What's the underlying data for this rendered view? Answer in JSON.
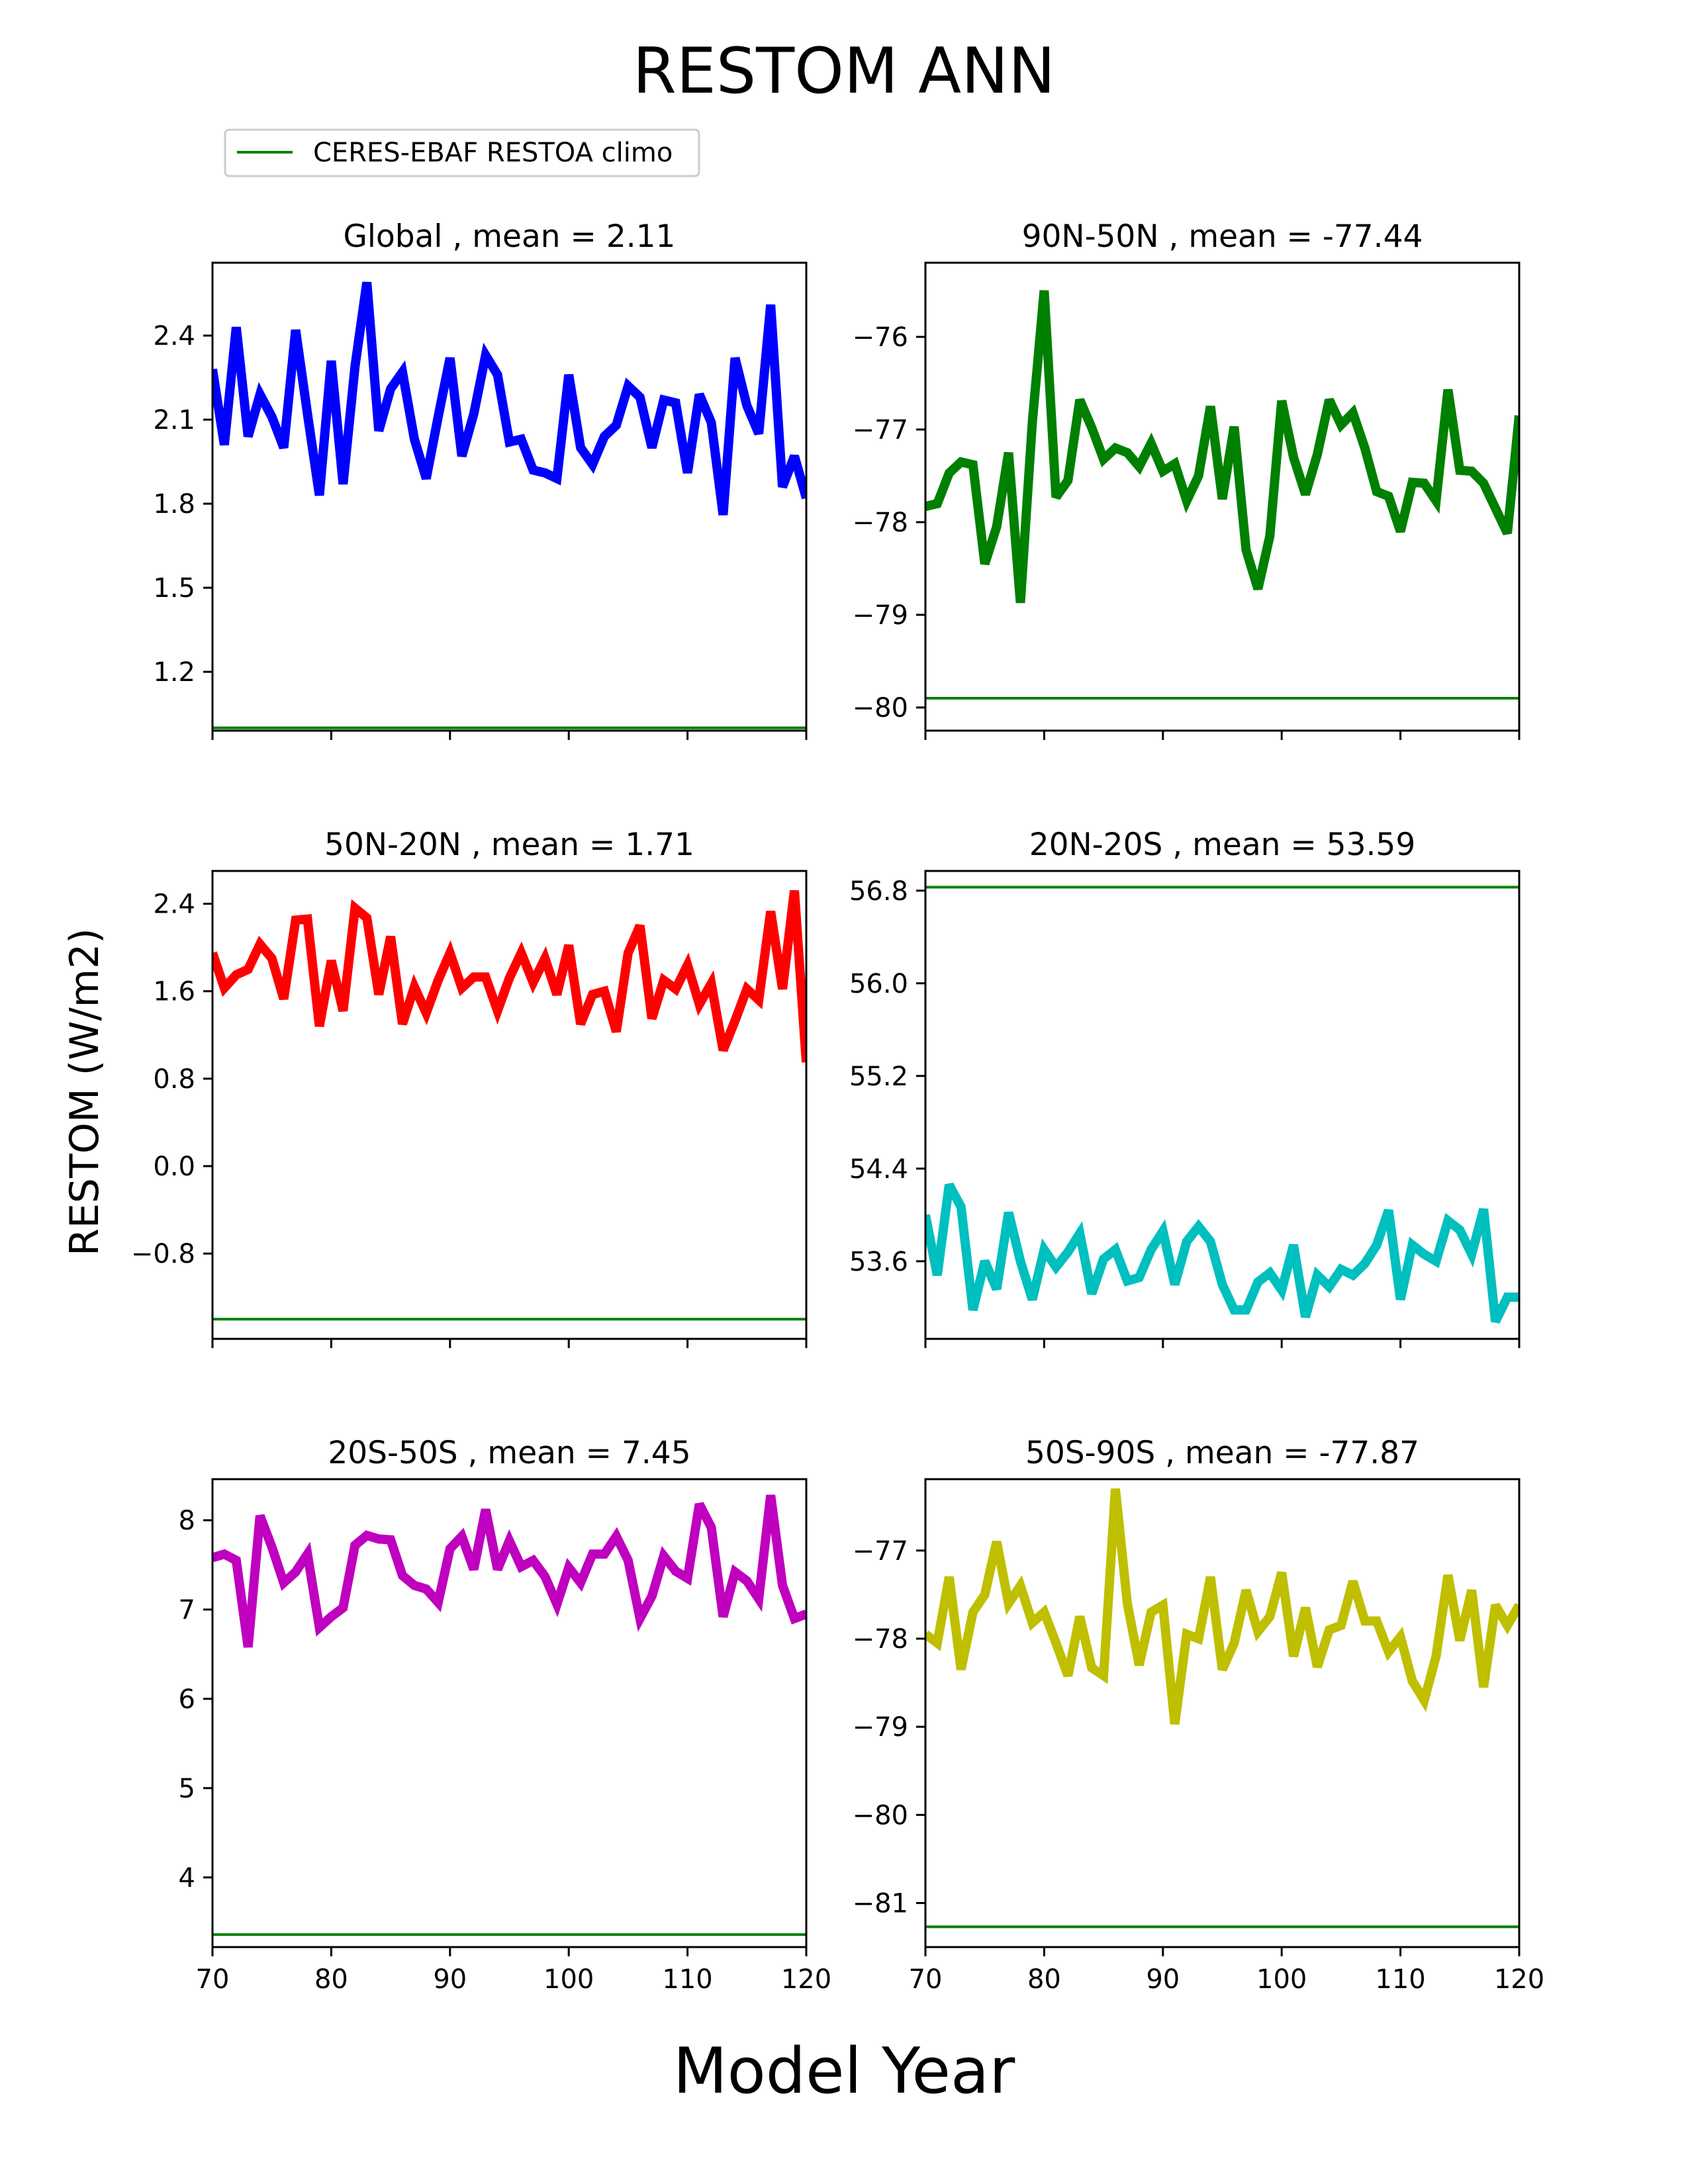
{
  "figure": {
    "title": "RESTOM ANN",
    "xlabel": "Model Year",
    "ylabel": "RESTOM (W/m2)",
    "legend_label": "CERES-EBAF RESTOA climo",
    "legend_color": "#008000"
  },
  "chart_data": [
    {
      "type": "line",
      "title": "Global , mean = 2.11",
      "color": "#0000ff",
      "xlim": [
        70,
        120
      ],
      "xticks": [
        70,
        80,
        90,
        100,
        110,
        120
      ],
      "ylim": [
        0.99,
        2.66
      ],
      "yticks": [
        1.2,
        1.5,
        1.8,
        2.1,
        2.4
      ],
      "ytick_labels": [
        "1.2",
        "1.5",
        "1.8",
        "2.1",
        "2.4"
      ],
      "show_xtick_labels": false,
      "reference_value": 1.0,
      "x": [
        70,
        71,
        72,
        73,
        74,
        75,
        76,
        77,
        78,
        79,
        80,
        81,
        82,
        83,
        84,
        85,
        86,
        87,
        88,
        89,
        90,
        91,
        92,
        93,
        94,
        95,
        96,
        97,
        98,
        99,
        100,
        101,
        102,
        103,
        104,
        105,
        106,
        107,
        108,
        109,
        110,
        111,
        112,
        113,
        114,
        115,
        116,
        117,
        118,
        119,
        120
      ],
      "y": [
        2.28,
        2.01,
        2.43,
        2.04,
        2.19,
        2.11,
        2.0,
        2.42,
        2.12,
        1.83,
        2.31,
        1.87,
        2.29,
        2.59,
        2.06,
        2.21,
        2.27,
        2.03,
        1.89,
        2.11,
        2.32,
        1.97,
        2.12,
        2.33,
        2.26,
        2.02,
        2.03,
        1.92,
        1.91,
        1.89,
        2.26,
        2.0,
        1.94,
        2.04,
        2.08,
        2.22,
        2.18,
        2.0,
        2.17,
        2.16,
        1.91,
        2.19,
        2.09,
        1.76,
        2.32,
        2.15,
        2.05,
        2.51,
        1.86,
        1.97,
        1.82
      ]
    },
    {
      "type": "line",
      "title": "90N-50N , mean = -77.44",
      "color": "#008000",
      "xlim": [
        70,
        120
      ],
      "xticks": [
        70,
        80,
        90,
        100,
        110,
        120
      ],
      "ylim": [
        -80.25,
        -75.2
      ],
      "yticks": [
        -80,
        -79,
        -78,
        -77,
        -76
      ],
      "ytick_labels": [
        "−80",
        "−79",
        "−78",
        "−77",
        "−76"
      ],
      "show_xtick_labels": false,
      "reference_value": -79.9,
      "x": [
        70,
        71,
        72,
        73,
        74,
        75,
        76,
        77,
        78,
        79,
        80,
        81,
        82,
        83,
        84,
        85,
        86,
        87,
        88,
        89,
        90,
        91,
        92,
        93,
        94,
        95,
        96,
        97,
        98,
        99,
        100,
        101,
        102,
        103,
        104,
        105,
        106,
        107,
        108,
        109,
        110,
        111,
        112,
        113,
        114,
        115,
        116,
        117,
        118,
        119,
        120
      ],
      "y": [
        -77.83,
        -77.8,
        -77.47,
        -77.35,
        -77.38,
        -78.45,
        -78.05,
        -77.25,
        -78.87,
        -76.92,
        -75.5,
        -77.73,
        -77.55,
        -76.68,
        -76.98,
        -77.32,
        -77.2,
        -77.25,
        -77.4,
        -77.15,
        -77.45,
        -77.37,
        -77.77,
        -77.5,
        -76.75,
        -77.75,
        -76.97,
        -78.3,
        -78.72,
        -78.15,
        -76.69,
        -77.3,
        -77.7,
        -77.27,
        -76.68,
        -76.95,
        -76.82,
        -77.2,
        -77.67,
        -77.72,
        -78.1,
        -77.57,
        -77.58,
        -77.77,
        -76.57,
        -77.44,
        -77.45,
        -77.58,
        -77.85,
        -78.12,
        -76.85
      ]
    },
    {
      "type": "line",
      "title": "50N-20N , mean = 1.71",
      "color": "#ff0000",
      "xlim": [
        70,
        120
      ],
      "xticks": [
        70,
        80,
        90,
        100,
        110,
        120
      ],
      "ylim": [
        -1.58,
        2.7
      ],
      "yticks": [
        -0.8,
        0.0,
        0.8,
        1.6,
        2.4
      ],
      "ytick_labels": [
        "−0.8",
        "0.0",
        "0.8",
        "1.6",
        "2.4"
      ],
      "show_xtick_labels": false,
      "reference_value": -1.4,
      "x": [
        70,
        71,
        72,
        73,
        74,
        75,
        76,
        77,
        78,
        79,
        80,
        81,
        82,
        83,
        84,
        85,
        86,
        87,
        88,
        89,
        90,
        91,
        92,
        93,
        94,
        95,
        96,
        97,
        98,
        99,
        100,
        101,
        102,
        103,
        104,
        105,
        106,
        107,
        108,
        109,
        110,
        111,
        112,
        113,
        114,
        115,
        116,
        117,
        118,
        119,
        120
      ],
      "y": [
        1.95,
        1.63,
        1.75,
        1.8,
        2.03,
        1.9,
        1.53,
        2.25,
        2.26,
        1.28,
        1.88,
        1.42,
        2.36,
        2.27,
        1.57,
        2.1,
        1.3,
        1.64,
        1.4,
        1.7,
        1.95,
        1.63,
        1.73,
        1.73,
        1.42,
        1.72,
        1.95,
        1.68,
        1.9,
        1.57,
        2.02,
        1.3,
        1.57,
        1.6,
        1.23,
        1.95,
        2.2,
        1.35,
        1.7,
        1.62,
        1.84,
        1.48,
        1.67,
        1.06,
        1.33,
        1.62,
        1.52,
        2.33,
        1.62,
        2.52,
        0.95
      ]
    },
    {
      "type": "line",
      "title": "20N-20S , mean = 53.59",
      "color": "#00bfbf",
      "xlim": [
        70,
        120
      ],
      "xticks": [
        70,
        80,
        90,
        100,
        110,
        120
      ],
      "ylim": [
        52.93,
        56.97
      ],
      "yticks": [
        53.6,
        54.4,
        55.2,
        56.0,
        56.8
      ],
      "ytick_labels": [
        "53.6",
        "54.4",
        "55.2",
        "56.0",
        "56.8"
      ],
      "show_xtick_labels": false,
      "reference_value": 56.83,
      "x": [
        70,
        71,
        72,
        73,
        74,
        75,
        76,
        77,
        78,
        79,
        80,
        81,
        82,
        83,
        84,
        85,
        86,
        87,
        88,
        89,
        90,
        91,
        92,
        93,
        94,
        95,
        96,
        97,
        98,
        99,
        100,
        101,
        102,
        103,
        104,
        105,
        106,
        107,
        108,
        109,
        110,
        111,
        112,
        113,
        114,
        115,
        116,
        117,
        118,
        119,
        120
      ],
      "y": [
        54.0,
        53.48,
        54.26,
        54.07,
        53.18,
        53.6,
        53.36,
        54.02,
        53.6,
        53.27,
        53.7,
        53.55,
        53.68,
        53.84,
        53.32,
        53.62,
        53.7,
        53.43,
        53.46,
        53.7,
        53.86,
        53.4,
        53.77,
        53.9,
        53.77,
        53.4,
        53.18,
        53.18,
        53.42,
        53.5,
        53.35,
        53.74,
        53.12,
        53.48,
        53.38,
        53.53,
        53.48,
        53.58,
        53.74,
        54.04,
        53.27,
        53.74,
        53.66,
        53.6,
        53.95,
        53.87,
        53.66,
        54.05,
        53.08,
        53.29,
        53.29
      ]
    },
    {
      "type": "line",
      "title": "20S-50S , mean = 7.45",
      "color": "#bf00bf",
      "xlim": [
        70,
        120
      ],
      "xticks": [
        70,
        80,
        90,
        100,
        110,
        120
      ],
      "ylim": [
        3.22,
        8.46
      ],
      "yticks": [
        4,
        5,
        6,
        7,
        8
      ],
      "ytick_labels": [
        "4",
        "5",
        "6",
        "7",
        "8"
      ],
      "show_xtick_labels": true,
      "reference_value": 3.36,
      "x": [
        70,
        71,
        72,
        73,
        74,
        75,
        76,
        77,
        78,
        79,
        80,
        81,
        82,
        83,
        84,
        85,
        86,
        87,
        88,
        89,
        90,
        91,
        92,
        93,
        94,
        95,
        96,
        97,
        98,
        99,
        100,
        101,
        102,
        103,
        104,
        105,
        106,
        107,
        108,
        109,
        110,
        111,
        112,
        113,
        114,
        115,
        116,
        117,
        118,
        119,
        120
      ],
      "y": [
        7.58,
        7.62,
        7.55,
        6.58,
        8.05,
        7.7,
        7.3,
        7.42,
        7.62,
        6.8,
        6.92,
        7.02,
        7.72,
        7.83,
        7.79,
        7.78,
        7.38,
        7.27,
        7.23,
        7.08,
        7.68,
        7.82,
        7.45,
        8.12,
        7.45,
        7.77,
        7.48,
        7.55,
        7.37,
        7.06,
        7.47,
        7.3,
        7.62,
        7.62,
        7.82,
        7.55,
        6.9,
        7.15,
        7.6,
        7.43,
        7.35,
        8.18,
        7.92,
        6.92,
        7.42,
        7.32,
        7.12,
        8.28,
        7.27,
        6.9,
        6.95
      ]
    },
    {
      "type": "line",
      "title": "50S-90S , mean = -77.87",
      "color": "#bfbf00",
      "xlim": [
        70,
        120
      ],
      "xticks": [
        70,
        80,
        90,
        100,
        110,
        120
      ],
      "ylim": [
        -81.5,
        -76.19
      ],
      "yticks": [
        -81,
        -80,
        -79,
        -78,
        -77
      ],
      "ytick_labels": [
        "−81",
        "−80",
        "−79",
        "−78",
        "−77"
      ],
      "show_xtick_labels": true,
      "reference_value": -81.27,
      "x": [
        70,
        71,
        72,
        73,
        74,
        75,
        76,
        77,
        78,
        79,
        80,
        81,
        82,
        83,
        84,
        85,
        86,
        87,
        88,
        89,
        90,
        91,
        92,
        93,
        94,
        95,
        96,
        97,
        98,
        99,
        100,
        101,
        102,
        103,
        104,
        105,
        106,
        107,
        108,
        109,
        110,
        111,
        112,
        113,
        114,
        115,
        116,
        117,
        118,
        119,
        120
      ],
      "y": [
        -77.95,
        -78.05,
        -77.3,
        -78.35,
        -77.7,
        -77.5,
        -76.9,
        -77.6,
        -77.4,
        -77.82,
        -77.7,
        -78.05,
        -78.42,
        -77.75,
        -78.33,
        -78.42,
        -76.3,
        -77.6,
        -78.3,
        -77.7,
        -77.62,
        -78.97,
        -77.95,
        -78.0,
        -77.3,
        -78.35,
        -78.05,
        -77.45,
        -77.92,
        -77.75,
        -77.25,
        -78.2,
        -77.65,
        -78.32,
        -77.9,
        -77.85,
        -77.35,
        -77.8,
        -77.8,
        -78.15,
        -77.98,
        -78.48,
        -78.7,
        -78.2,
        -77.28,
        -78.02,
        -77.45,
        -78.55,
        -77.62,
        -77.85,
        -77.62
      ]
    }
  ]
}
